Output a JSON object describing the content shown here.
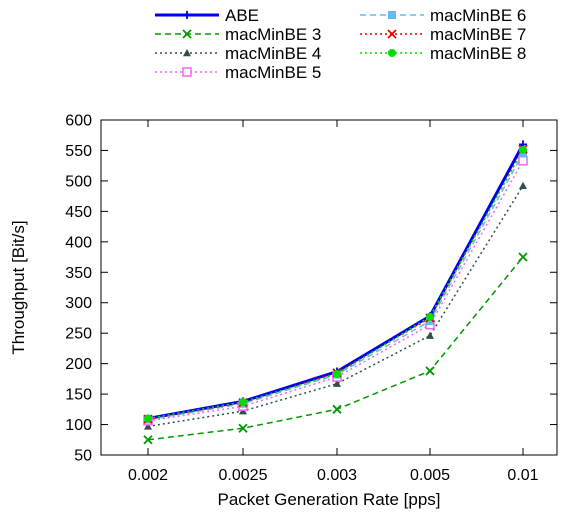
{
  "chart_data": {
    "type": "line",
    "title": "",
    "xlabel": "Packet Generation Rate [pps]",
    "ylabel": "Throughput [Bit/s]",
    "x_ticks": [
      "0.002",
      "0.0025",
      "0.003",
      "0.005",
      "0.01"
    ],
    "y_ticks": [
      "50",
      "100",
      "150",
      "200",
      "250",
      "300",
      "350",
      "400",
      "450",
      "500",
      "550",
      "600"
    ],
    "ylim": [
      50,
      600
    ],
    "x_scale": "categorical",
    "grid": false,
    "legend_position": "top, outside plot, two columns",
    "series": [
      {
        "name": "ABE",
        "color": "#0000ee",
        "dash": "solid",
        "marker": "plus",
        "values": [
          110,
          138,
          187,
          278,
          560
        ]
      },
      {
        "name": "macMinBE 3",
        "color": "#009900",
        "dash": "dashed",
        "marker": "x",
        "values": [
          75,
          94,
          125,
          188,
          375
        ]
      },
      {
        "name": "macMinBE 4",
        "color": "#2f4f4f",
        "dash": "dotted",
        "marker": "triangle",
        "values": [
          97,
          122,
          167,
          246,
          492
        ]
      },
      {
        "name": "macMinBE 5",
        "color": "#ee66ee",
        "dash": "dotted",
        "marker": "square-open",
        "values": [
          106,
          130,
          178,
          264,
          533
        ]
      },
      {
        "name": "macMinBE 6",
        "color": "#66bbee",
        "dash": "dashed",
        "marker": "square-filled",
        "values": [
          108,
          134,
          182,
          270,
          545
        ]
      },
      {
        "name": "macMinBE 7",
        "color": "#ee0000",
        "dash": "dotted",
        "marker": "x",
        "values": [
          109,
          136,
          185,
          275,
          552
        ]
      },
      {
        "name": "macMinBE 8",
        "color": "#00dd00",
        "dash": "dotted",
        "marker": "circle",
        "values": [
          110,
          137,
          183,
          277,
          551
        ]
      }
    ]
  }
}
